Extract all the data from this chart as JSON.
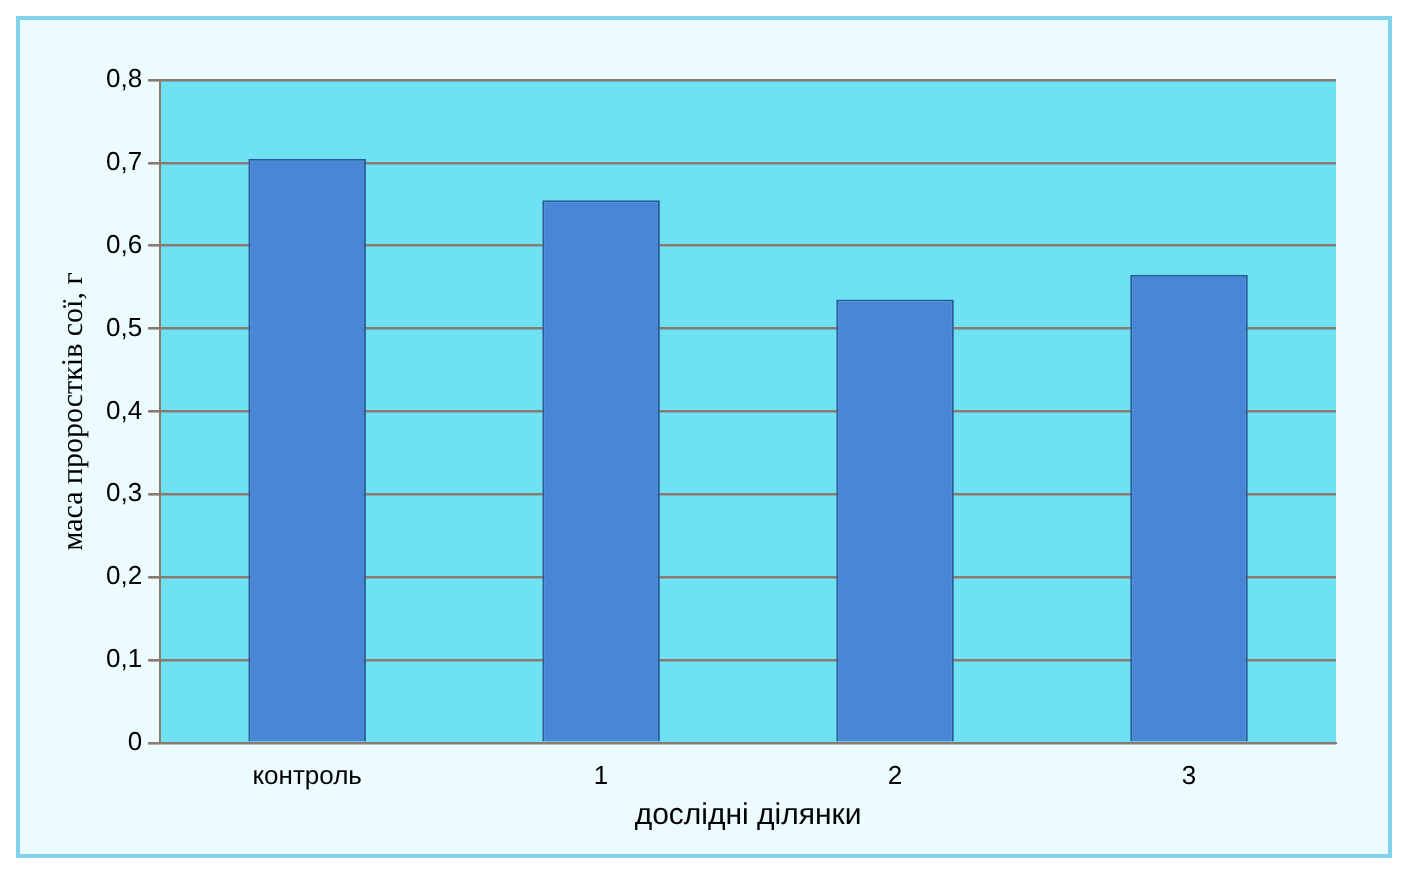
{
  "chart_data": {
    "type": "bar",
    "xlabel": "дослідні ділянки",
    "ylabel": "маса проростків сої, г",
    "categories": [
      "контроль",
      "1",
      "2",
      "3"
    ],
    "values": [
      0.705,
      0.655,
      0.535,
      0.565
    ],
    "color": "#4a86d6",
    "ylim": [
      0,
      0.8
    ],
    "yticks": [
      {
        "value": 0,
        "label": "0"
      },
      {
        "value": 0.1,
        "label": "0,1"
      },
      {
        "value": 0.2,
        "label": "0,2"
      },
      {
        "value": 0.3,
        "label": "0,3"
      },
      {
        "value": 0.4,
        "label": "0,4"
      },
      {
        "value": 0.5,
        "label": "0,5"
      },
      {
        "value": 0.6,
        "label": "0,6"
      },
      {
        "value": 0.7,
        "label": "0,7"
      },
      {
        "value": 0.8,
        "label": "0,8"
      }
    ],
    "grid": "y",
    "legend": false
  }
}
